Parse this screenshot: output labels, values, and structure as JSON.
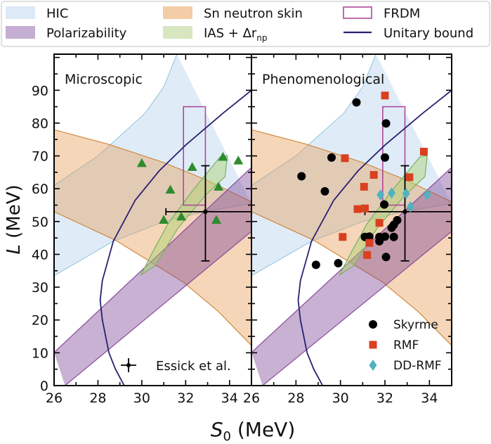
{
  "legend": {
    "items": [
      {
        "label": "HIC",
        "kind": "band",
        "color": "#dce9f6"
      },
      {
        "label": "Sn neutron skin",
        "kind": "band",
        "color": "#f2cda6"
      },
      {
        "label": "FRDM",
        "kind": "box",
        "color": "#b0479a"
      },
      {
        "label": "Polarizability",
        "kind": "band",
        "color": "#c4aed3"
      },
      {
        "label": "IAS + Δr",
        "sub": "np",
        "kind": "band",
        "color": "#d7e6bf"
      },
      {
        "label": "Unitary bound",
        "kind": "line",
        "color": "#2a2070"
      }
    ]
  },
  "chart_data": {
    "type": "scatter",
    "xlabel": "S",
    "xlabel_sub": "0",
    "xlabel_unit": " (MeV)",
    "ylabel": "L",
    "ylabel_unit": " (MeV)",
    "xlim": [
      26,
      35
    ],
    "ylim": [
      0,
      101
    ],
    "xticks": [
      26,
      28,
      30,
      32,
      34
    ],
    "yticks": [
      0,
      10,
      20,
      30,
      40,
      50,
      60,
      70,
      80,
      90
    ],
    "xtick_labels": [
      "26",
      "28",
      "30",
      "32",
      "34"
    ],
    "ytick_labels": [
      "0",
      "10",
      "20",
      "30",
      "40",
      "50",
      "60",
      "70",
      "80",
      "90"
    ],
    "grid": false,
    "colors": {
      "hic_fill": "rgba(170,205,236,0.38)",
      "hic_edge": "#9ccbe0",
      "sn_fill": "rgba(232,158,88,0.42)",
      "sn_edge": "#d08a3a",
      "pol_fill": "rgba(125,70,150,0.42)",
      "pol_edge": "#8a4a9a",
      "ias_fill": "rgba(170,210,110,0.45)",
      "ias_edge": "#7ab060",
      "frdm": "#b0479a",
      "unitary": "#2a2070",
      "micro": "#2e8b2e",
      "skyrme": "#000000",
      "rmf": "#d8401f",
      "ddrmf": "#4fb3bf"
    },
    "bands": {
      "hic": {
        "upper": [
          [
            26,
            61
          ],
          [
            28,
            70
          ],
          [
            30.15,
            83
          ],
          [
            31,
            91
          ],
          [
            31.6,
            101
          ]
        ],
        "lower": [
          [
            26,
            33.5
          ],
          [
            28.7,
            44
          ],
          [
            31,
            50
          ],
          [
            33,
            53.2
          ],
          [
            35,
            55.5
          ]
        ]
      },
      "sn_neutron_skin": {
        "upper": [
          [
            26,
            78
          ],
          [
            28.5,
            73.5
          ],
          [
            31,
            68
          ],
          [
            33,
            62.5
          ],
          [
            35,
            56
          ]
        ],
        "lower": [
          [
            26,
            53
          ],
          [
            28.8,
            44.3
          ],
          [
            31.9,
            31.5
          ],
          [
            33.5,
            22.5
          ],
          [
            35,
            12.2
          ]
        ]
      },
      "polarizability": {
        "upper": [
          [
            26,
            10.1
          ],
          [
            35,
            66.5
          ]
        ],
        "lower": [
          [
            26.5,
            0
          ],
          [
            35,
            47
          ]
        ]
      },
      "ias": [
        [
          29.96,
          33.7
        ],
        [
          30.5,
          40.8
        ],
        [
          31.2,
          49.4
        ],
        [
          32.3,
          59.3
        ],
        [
          33.57,
          69.7
        ],
        [
          33.9,
          70.1
        ],
        [
          33.8,
          63.7
        ],
        [
          32.9,
          58
        ],
        [
          31.65,
          48
        ],
        [
          30.6,
          36.5
        ]
      ],
      "frdm": {
        "S": [
          31.9,
          32.9
        ],
        "L": [
          55,
          85
        ]
      },
      "unitary_bound": [
        [
          29.2,
          0
        ],
        [
          28.8,
          5
        ],
        [
          28.5,
          10
        ],
        [
          28.2,
          20
        ],
        [
          28.1,
          26
        ],
        [
          28.2,
          32
        ],
        [
          28.7,
          44
        ],
        [
          29.7,
          56.5
        ],
        [
          30.8,
          65.5
        ],
        [
          32,
          73.3
        ],
        [
          33.7,
          83
        ],
        [
          35,
          90
        ]
      ]
    },
    "essick": {
      "label": "Essick et al.",
      "S": 32.9,
      "L": 53,
      "S_range": [
        31.1,
        35.5
      ],
      "L_range": [
        38,
        67
      ]
    },
    "panels": [
      {
        "title": "Microscopic",
        "series": [
          {
            "marker": "triangle",
            "color_key": "micro",
            "points": [
              [
                30.0,
                67.8
              ],
              [
                32.3,
                66.6
              ],
              [
                33.7,
                69.7
              ],
              [
                34.4,
                68.6
              ],
              [
                31.3,
                59.7
              ],
              [
                33.5,
                60.6
              ],
              [
                31.0,
                50.5
              ],
              [
                31.8,
                51.5
              ],
              [
                33.4,
                50.5
              ]
            ]
          }
        ]
      },
      {
        "title": "Phenomenological",
        "series": [
          {
            "name": "Skyrme",
            "marker": "circle",
            "color_key": "skyrme",
            "points": [
              [
                30.72,
                86.3
              ],
              [
                32.05,
                79.9
              ],
              [
                29.6,
                69.5
              ],
              [
                32.0,
                69.5
              ],
              [
                28.25,
                63.8
              ],
              [
                29.3,
                59.2
              ],
              [
                31.97,
                55.2
              ],
              [
                32.55,
                50.4
              ],
              [
                32.4,
                49
              ],
              [
                32.3,
                48.1
              ],
              [
                31.1,
                45.3
              ],
              [
                31.3,
                45.4
              ],
              [
                31.75,
                45.3
              ],
              [
                32.0,
                45.4
              ],
              [
                32.4,
                45.3
              ],
              [
                31.75,
                44.0
              ],
              [
                32.05,
                39.2
              ],
              [
                28.9,
                36.8
              ],
              [
                29.9,
                37.3
              ]
            ]
          },
          {
            "name": "RMF",
            "marker": "square",
            "color_key": "rmf",
            "points": [
              [
                32.0,
                88.4
              ],
              [
                30.2,
                69.3
              ],
              [
                33.75,
                71.3
              ],
              [
                31.5,
                64.2
              ],
              [
                33.1,
                63.5
              ],
              [
                31.06,
                60.6
              ],
              [
                30.77,
                53.8
              ],
              [
                31.1,
                54.0
              ],
              [
                31.75,
                49.6
              ],
              [
                30.1,
                45.3
              ],
              [
                31.3,
                43.5
              ],
              [
                31.2,
                39.8
              ]
            ]
          },
          {
            "name": "DD-RMF",
            "marker": "diamond",
            "color_key": "ddrmf",
            "points": [
              [
                31.8,
                58.1
              ],
              [
                32.3,
                58.7
              ],
              [
                32.95,
                58.5
              ],
              [
                33.9,
                58.2
              ],
              [
                33.15,
                54.5
              ]
            ]
          }
        ]
      }
    ]
  }
}
